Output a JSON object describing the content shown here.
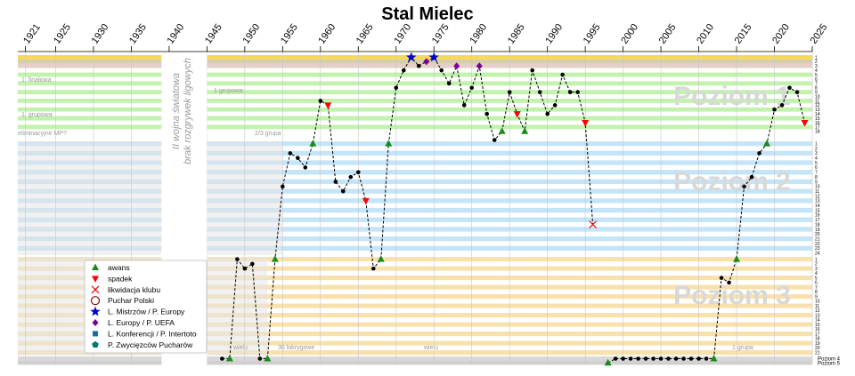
{
  "chart_data": {
    "type": "line",
    "title": "Stal Mielec",
    "x_ticks": [
      1921,
      1925,
      1930,
      1935,
      1940,
      1945,
      1950,
      1955,
      1960,
      1965,
      1970,
      1975,
      1980,
      1985,
      1990,
      1995,
      2000,
      2005,
      2010,
      2015,
      2020,
      2025
    ],
    "xlim": [
      1920,
      2025
    ],
    "war_gap": [
      1939,
      1945
    ],
    "war_text_lines": [
      "II wojna światowa",
      "brak rozgrywek ligowych"
    ],
    "levels": [
      {
        "name": "Poziom 1",
        "rows": 18,
        "colors": [
          "#b8eea0",
          "#ffffff"
        ]
      },
      {
        "name": "Poziom 2",
        "rows": 24,
        "colors": [
          "#b8e0f6",
          "#ffffff"
        ]
      },
      {
        "name": "Poziom 3",
        "rows": 21,
        "colors": [
          "#f8dca0",
          "#ffffff"
        ]
      },
      {
        "name": "Poziom 4",
        "rows": 1,
        "colors": [
          "#d8d8d8"
        ]
      },
      {
        "name": "Poziom 5",
        "rows": 1,
        "colors": [
          "#d0d0d0"
        ]
      }
    ],
    "row_labels": {
      "level1": [
        "1",
        "2",
        "3",
        "4",
        "5",
        "6",
        "7",
        "8",
        "9",
        "10",
        "11",
        "12",
        "13",
        "14",
        "15",
        "16",
        "17",
        "18"
      ],
      "level2": [
        "1",
        "2",
        "3",
        "4",
        "5",
        "6",
        "7",
        "8",
        "9",
        "10",
        "11",
        "12",
        "13",
        "14",
        "15",
        "16",
        "17",
        "18",
        "19",
        "20",
        "21",
        "22",
        "23",
        "24"
      ],
      "level3": [
        "1",
        "2",
        "3",
        "4",
        "5",
        "6",
        "7",
        "8",
        "9",
        "10",
        "11",
        "12",
        "13",
        "14",
        "15",
        "16",
        "17",
        "18",
        "19",
        "20",
        "21"
      ]
    },
    "side_labels": [
      "Poziom 4",
      "Poziom 5"
    ],
    "faint_labels": [
      "1. finałowa",
      "1. grupowa",
      "1 grupowa",
      "eliminacyjne MP?",
      "2/3 grupa",
      "wielu",
      "30 lokrygowe",
      "wielu",
      "1 grupa"
    ],
    "legend": [
      {
        "label": "awans",
        "symbol": "triangle-up",
        "color": "#1a8a1a"
      },
      {
        "label": "spadek",
        "symbol": "triangle-down",
        "color": "#ff0000"
      },
      {
        "label": "likwidacja klubu",
        "symbol": "x",
        "color": "#ff0000"
      },
      {
        "label": "Puchar Polski",
        "symbol": "circle-open",
        "color": "#990000"
      },
      {
        "label": "L. Mistrzów / P. Europy",
        "symbol": "star",
        "color": "#0000cc"
      },
      {
        "label": "L. Europy / P. UEFA",
        "symbol": "diamond",
        "color": "#7a0099"
      },
      {
        "label": "L. Konferencji / P. Intertoto",
        "symbol": "square",
        "color": "#1a6aaa"
      },
      {
        "label": "P. Zwycięzców Pucharów",
        "symbol": "pentagon",
        "color": "#007a6a"
      }
    ],
    "series": [
      {
        "points": [
          {
            "x": 1947,
            "level": 4,
            "pos": 1
          },
          {
            "x": 1948,
            "level": 4,
            "pos": 1,
            "marker": "promotion"
          },
          {
            "x": 1949,
            "level": 3,
            "pos": 1
          },
          {
            "x": 1950,
            "level": 3,
            "pos": 3
          },
          {
            "x": 1951,
            "level": 3,
            "pos": 2
          },
          {
            "x": 1952,
            "level": 4,
            "pos": 1
          },
          {
            "x": 1953,
            "level": 4,
            "pos": 1,
            "marker": "promotion"
          },
          {
            "x": 1954,
            "level": 3,
            "pos": 1,
            "marker": "promotion"
          },
          {
            "x": 1955,
            "level": 2,
            "pos": 10
          },
          {
            "x": 1956,
            "level": 2,
            "pos": 3
          },
          {
            "x": 1957,
            "level": 2,
            "pos": 4
          },
          {
            "x": 1958,
            "level": 2,
            "pos": 6
          },
          {
            "x": 1959,
            "level": 2,
            "pos": 1,
            "marker": "promotion"
          },
          {
            "x": 1960,
            "level": 1,
            "pos": 11
          },
          {
            "x": 1961,
            "level": 1,
            "pos": 12,
            "marker": "relegation"
          },
          {
            "x": 1962,
            "level": 2,
            "pos": 9
          },
          {
            "x": 1963,
            "level": 2,
            "pos": 11
          },
          {
            "x": 1964,
            "level": 2,
            "pos": 8
          },
          {
            "x": 1965,
            "level": 2,
            "pos": 7
          },
          {
            "x": 1966,
            "level": 2,
            "pos": 13,
            "marker": "relegation"
          },
          {
            "x": 1967,
            "level": 3,
            "pos": 3
          },
          {
            "x": 1968,
            "level": 3,
            "pos": 1,
            "marker": "promotion"
          },
          {
            "x": 1969,
            "level": 2,
            "pos": 1,
            "marker": "promotion"
          },
          {
            "x": 1970,
            "level": 1,
            "pos": 8
          },
          {
            "x": 1971,
            "level": 1,
            "pos": 4
          },
          {
            "x": 1972,
            "level": 1,
            "pos": 1,
            "marker": "cl"
          },
          {
            "x": 1973,
            "level": 1,
            "pos": 3
          },
          {
            "x": 1974,
            "level": 1,
            "pos": 2,
            "marker": "uefa"
          },
          {
            "x": 1975,
            "level": 1,
            "pos": 1,
            "marker": "cl"
          },
          {
            "x": 1976,
            "level": 1,
            "pos": 4
          },
          {
            "x": 1977,
            "level": 1,
            "pos": 7
          },
          {
            "x": 1978,
            "level": 1,
            "pos": 3,
            "marker": "uefa"
          },
          {
            "x": 1979,
            "level": 1,
            "pos": 12
          },
          {
            "x": 1980,
            "level": 1,
            "pos": 8
          },
          {
            "x": 1981,
            "level": 1,
            "pos": 3,
            "marker": "uefa"
          },
          {
            "x": 1982,
            "level": 1,
            "pos": 14
          },
          {
            "x": 1983,
            "level": 1,
            "pos": 20
          },
          {
            "x": 1984,
            "level": 1,
            "pos": 18,
            "marker": "promotion"
          },
          {
            "x": 1985,
            "level": 1,
            "pos": 9
          },
          {
            "x": 1986,
            "level": 1,
            "pos": 14,
            "marker": "relegation"
          },
          {
            "x": 1987,
            "level": 1,
            "pos": 18,
            "marker": "promotion"
          },
          {
            "x": 1988,
            "level": 1,
            "pos": 4
          },
          {
            "x": 1989,
            "level": 1,
            "pos": 9
          },
          {
            "x": 1990,
            "level": 1,
            "pos": 14
          },
          {
            "x": 1991,
            "level": 1,
            "pos": 12
          },
          {
            "x": 1992,
            "level": 1,
            "pos": 5
          },
          {
            "x": 1993,
            "level": 1,
            "pos": 9
          },
          {
            "x": 1994,
            "level": 1,
            "pos": 9
          },
          {
            "x": 1995,
            "level": 1,
            "pos": 16,
            "marker": "relegation"
          },
          {
            "x": 1996,
            "level": 2,
            "pos": 18,
            "marker": "dissolution"
          }
        ]
      },
      {
        "points": [
          {
            "x": 1998,
            "level": 5,
            "pos": 1,
            "marker": "promotion"
          },
          {
            "x": 1999,
            "level": 4,
            "pos": 1
          },
          {
            "x": 2000,
            "level": 4,
            "pos": 1
          },
          {
            "x": 2001,
            "level": 4,
            "pos": 1
          },
          {
            "x": 2002,
            "level": 4,
            "pos": 1
          },
          {
            "x": 2003,
            "level": 4,
            "pos": 1
          },
          {
            "x": 2004,
            "level": 4,
            "pos": 1
          },
          {
            "x": 2005,
            "level": 4,
            "pos": 1
          },
          {
            "x": 2006,
            "level": 4,
            "pos": 1
          },
          {
            "x": 2007,
            "level": 4,
            "pos": 1
          },
          {
            "x": 2008,
            "level": 4,
            "pos": 1
          },
          {
            "x": 2009,
            "level": 4,
            "pos": 1
          },
          {
            "x": 2010,
            "level": 4,
            "pos": 1
          },
          {
            "x": 2011,
            "level": 4,
            "pos": 1
          },
          {
            "x": 2012,
            "level": 4,
            "pos": 1,
            "marker": "promotion"
          },
          {
            "x": 2013,
            "level": 3,
            "pos": 5
          },
          {
            "x": 2014,
            "level": 3,
            "pos": 6
          },
          {
            "x": 2015,
            "level": 3,
            "pos": 1,
            "marker": "promotion"
          },
          {
            "x": 2016,
            "level": 2,
            "pos": 10
          },
          {
            "x": 2017,
            "level": 2,
            "pos": 8
          },
          {
            "x": 2018,
            "level": 2,
            "pos": 3
          },
          {
            "x": 2019,
            "level": 2,
            "pos": 1,
            "marker": "promotion"
          },
          {
            "x": 2020,
            "level": 1,
            "pos": 13
          },
          {
            "x": 2021,
            "level": 1,
            "pos": 12
          },
          {
            "x": 2022,
            "level": 1,
            "pos": 8
          },
          {
            "x": 2023,
            "level": 1,
            "pos": 9
          },
          {
            "x": 2024,
            "level": 1,
            "pos": 16,
            "marker": "relegation"
          }
        ]
      }
    ]
  }
}
